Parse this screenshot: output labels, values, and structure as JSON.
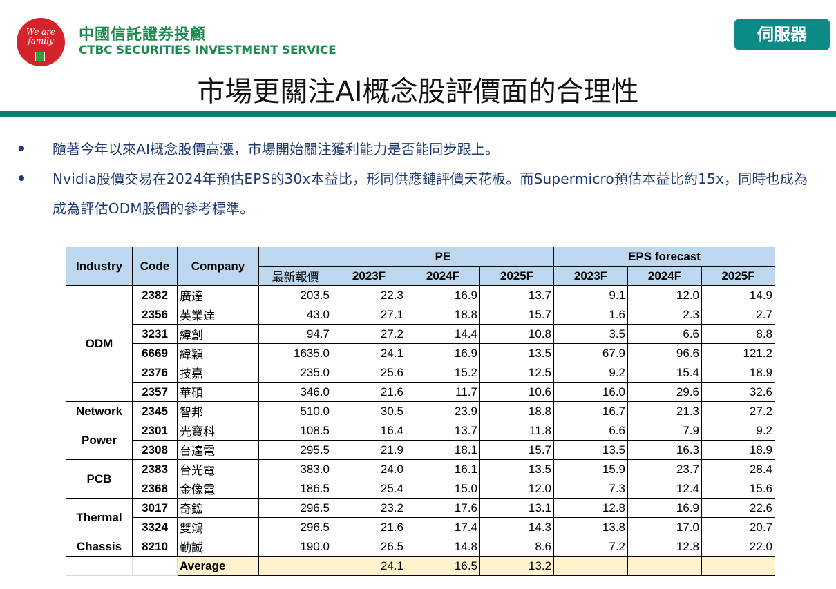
{
  "header": {
    "logo_text": "We are family",
    "brand_zh": "中國信託證券投顧",
    "brand_en": "CTBC SECURITIES INVESTMENT SERVICE",
    "server_button": "伺服器"
  },
  "title": "市場更關注AI概念股評價面的合理性",
  "bullets": [
    "隨著今年以來AI概念股價高漲，市場開始關注獲利能力是否能同步跟上。",
    "Nvidia股價交易在2024年預估EPS的30x本益比，形同供應鏈評價天花板。而Supermicro預估本益比約15x，同時也成為成為評估ODM股價的參考標準。"
  ],
  "table": {
    "headers": {
      "industry": "Industry",
      "code": "Code",
      "company": "Company",
      "price": "最新報價",
      "pe": "PE",
      "eps": "EPS forecast",
      "years": [
        "2023F",
        "2024F",
        "2025F"
      ]
    },
    "groups": [
      {
        "industry": "ODM",
        "rows": [
          {
            "code": "2382",
            "company": "廣達",
            "price": "203.5",
            "pe": [
              "22.3",
              "16.9",
              "13.7"
            ],
            "eps": [
              "9.1",
              "12.0",
              "14.9"
            ]
          },
          {
            "code": "2356",
            "company": "英業達",
            "price": "43.0",
            "pe": [
              "27.1",
              "18.8",
              "15.7"
            ],
            "eps": [
              "1.6",
              "2.3",
              "2.7"
            ]
          },
          {
            "code": "3231",
            "company": "緯創",
            "price": "94.7",
            "pe": [
              "27.2",
              "14.4",
              "10.8"
            ],
            "eps": [
              "3.5",
              "6.6",
              "8.8"
            ]
          },
          {
            "code": "6669",
            "company": "緯穎",
            "price": "1635.0",
            "pe": [
              "24.1",
              "16.9",
              "13.5"
            ],
            "eps": [
              "67.9",
              "96.6",
              "121.2"
            ]
          },
          {
            "code": "2376",
            "company": "技嘉",
            "price": "235.0",
            "pe": [
              "25.6",
              "15.2",
              "12.5"
            ],
            "eps": [
              "9.2",
              "15.4",
              "18.9"
            ]
          },
          {
            "code": "2357",
            "company": "華碩",
            "price": "346.0",
            "pe": [
              "21.6",
              "11.7",
              "10.6"
            ],
            "eps": [
              "16.0",
              "29.6",
              "32.6"
            ]
          }
        ]
      },
      {
        "industry": "Network",
        "rows": [
          {
            "code": "2345",
            "company": "智邦",
            "price": "510.0",
            "pe": [
              "30.5",
              "23.9",
              "18.8"
            ],
            "eps": [
              "16.7",
              "21.3",
              "27.2"
            ]
          }
        ]
      },
      {
        "industry": "Power",
        "rows": [
          {
            "code": "2301",
            "company": "光寶科",
            "price": "108.5",
            "pe": [
              "16.4",
              "13.7",
              "11.8"
            ],
            "eps": [
              "6.6",
              "7.9",
              "9.2"
            ]
          },
          {
            "code": "2308",
            "company": "台達電",
            "price": "295.5",
            "pe": [
              "21.9",
              "18.1",
              "15.7"
            ],
            "eps": [
              "13.5",
              "16.3",
              "18.9"
            ]
          }
        ]
      },
      {
        "industry": "PCB",
        "rows": [
          {
            "code": "2383",
            "company": "台光電",
            "price": "383.0",
            "pe": [
              "24.0",
              "16.1",
              "13.5"
            ],
            "eps": [
              "15.9",
              "23.7",
              "28.4"
            ]
          },
          {
            "code": "2368",
            "company": "金像電",
            "price": "186.5",
            "pe": [
              "25.4",
              "15.0",
              "12.0"
            ],
            "eps": [
              "7.3",
              "12.4",
              "15.6"
            ]
          }
        ]
      },
      {
        "industry": "Thermal",
        "rows": [
          {
            "code": "3017",
            "company": "奇鋐",
            "price": "296.5",
            "pe": [
              "23.2",
              "17.6",
              "13.1"
            ],
            "eps": [
              "12.8",
              "16.9",
              "22.6"
            ]
          },
          {
            "code": "3324",
            "company": "雙鴻",
            "price": "296.5",
            "pe": [
              "21.6",
              "17.4",
              "14.3"
            ],
            "eps": [
              "13.8",
              "17.0",
              "20.7"
            ]
          }
        ]
      },
      {
        "industry": "Chassis",
        "rows": [
          {
            "code": "8210",
            "company": "勤誠",
            "price": "190.0",
            "pe": [
              "26.5",
              "14.8",
              "8.6"
            ],
            "eps": [
              "7.2",
              "12.8",
              "22.0"
            ]
          }
        ]
      }
    ],
    "average": {
      "label": "Average",
      "pe": [
        "24.1",
        "16.5",
        "13.2"
      ]
    }
  }
}
